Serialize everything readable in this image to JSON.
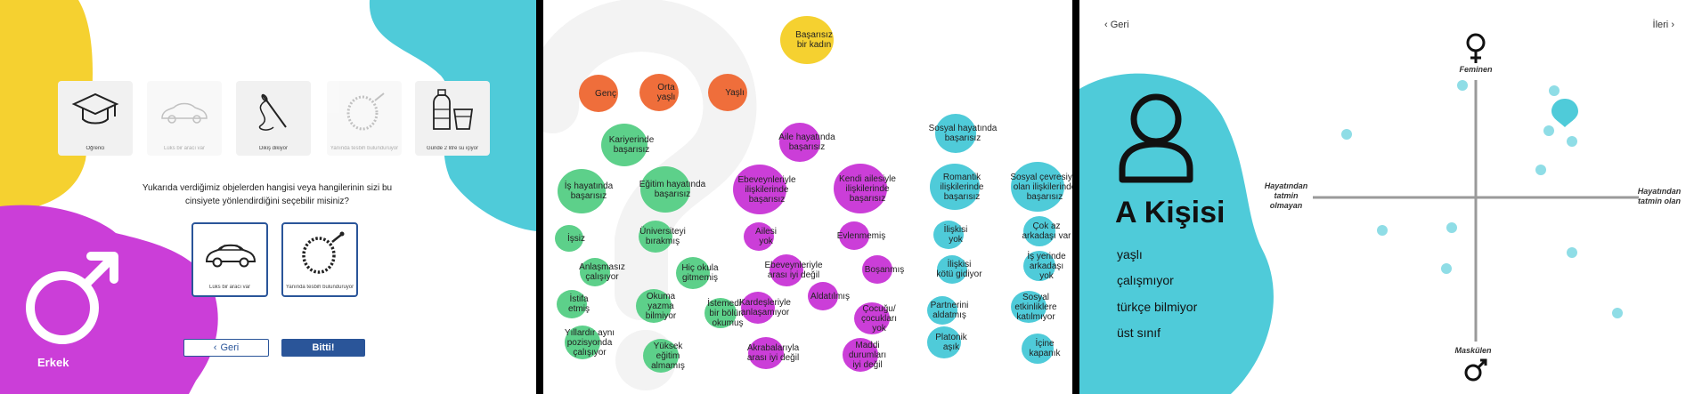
{
  "panel1": {
    "colors": {
      "yellow": "#f5d130",
      "cyan": "#4fcbd9",
      "magenta": "#cb3ed8",
      "blue": "#2a5599"
    },
    "objects": [
      {
        "icon": "graduation-cap-icon",
        "label": "Öğrenci",
        "selected": false
      },
      {
        "icon": "car-icon",
        "label": "Lüks bir aracı var",
        "selected": true
      },
      {
        "icon": "sewing-needle-icon",
        "label": "Dikiş dikiyor",
        "selected": false
      },
      {
        "icon": "rosary-icon",
        "label": "Yanında tesbih bulunduruyor",
        "selected": true
      },
      {
        "icon": "water-bottle-icon",
        "label": "Günde 2 litre su içiyor",
        "selected": false
      }
    ],
    "question": "Yukarıda verdiğimiz objelerden hangisi veya hangilerinin sizi bu cinsiyete yönlendirdiğini seçebilir misiniz?",
    "selected_cards": [
      {
        "icon": "car-icon",
        "label": "Lüks bir aracı var"
      },
      {
        "icon": "rosary-icon",
        "label": "Yanında tesbih bulunduruyor"
      }
    ],
    "back_label": "Geri",
    "done_label": "Bitti!",
    "gender_label": "Erkek",
    "gender_icon": "male-symbol-icon"
  },
  "panel2": {
    "colors": {
      "yellow": "#f5d130",
      "orange": "#ef6e3b",
      "green": "#5dd08a",
      "magenta": "#cb3ed8",
      "cyan": "#4fcbd9"
    },
    "bubbles": [
      {
        "lines": [
          "Başarısız",
          "bir kadın"
        ],
        "color": "yellow"
      },
      {
        "lines": [
          "Genç"
        ],
        "color": "orange"
      },
      {
        "lines": [
          "Orta",
          "yaşlı"
        ],
        "color": "orange"
      },
      {
        "lines": [
          "Yaşlı"
        ],
        "color": "orange"
      },
      {
        "lines": [
          "Kariyerinde",
          "başarısız"
        ],
        "color": "green"
      },
      {
        "lines": [
          "Aile hayatında",
          "başarısız"
        ],
        "color": "magenta"
      },
      {
        "lines": [
          "Sosyal hayatında",
          "başarısız"
        ],
        "color": "cyan"
      },
      {
        "lines": [
          "İş hayatında",
          "başarısız"
        ],
        "color": "green"
      },
      {
        "lines": [
          "Eğitim hayatında",
          "başarısız"
        ],
        "color": "green"
      },
      {
        "lines": [
          "Ebeveynleriyle",
          "ilişkilerinde",
          "başarısız"
        ],
        "color": "magenta"
      },
      {
        "lines": [
          "Kendi ailesiyle",
          "ilişkilerinde",
          "başarısız"
        ],
        "color": "magenta"
      },
      {
        "lines": [
          "Romantik",
          "ilişkilerinde",
          "başarısız"
        ],
        "color": "cyan"
      },
      {
        "lines": [
          "Sosyal çevresiyle",
          "olan ilişkilerinde",
          "başarısız"
        ],
        "color": "cyan"
      },
      {
        "lines": [
          "İşsiz"
        ],
        "color": "green"
      },
      {
        "lines": [
          "Üniversiteyi",
          "bırakmış"
        ],
        "color": "green"
      },
      {
        "lines": [
          "Ailesi",
          "yok"
        ],
        "color": "magenta"
      },
      {
        "lines": [
          "Evlenmemiş"
        ],
        "color": "magenta"
      },
      {
        "lines": [
          "İlişkisi",
          "yok"
        ],
        "color": "cyan"
      },
      {
        "lines": [
          "Çok az",
          "arkadaşı var"
        ],
        "color": "cyan"
      },
      {
        "lines": [
          "Anlaşmasız",
          "çalışıyor"
        ],
        "color": "green"
      },
      {
        "lines": [
          "Hiç okula",
          "gitmemiş"
        ],
        "color": "green"
      },
      {
        "lines": [
          "Ebeveynleriyle",
          "arası iyi değil"
        ],
        "color": "magenta"
      },
      {
        "lines": [
          "Boşanmış"
        ],
        "color": "magenta"
      },
      {
        "lines": [
          "İlişkisi",
          "kötü gidiyor"
        ],
        "color": "cyan"
      },
      {
        "lines": [
          "İş yerinde",
          "arkadaşı",
          "yok"
        ],
        "color": "cyan"
      },
      {
        "lines": [
          "İstifa",
          "etmiş"
        ],
        "color": "green"
      },
      {
        "lines": [
          "Okuma",
          "yazma",
          "bilmiyor"
        ],
        "color": "green"
      },
      {
        "lines": [
          "İstemediği",
          "bir bölüm",
          "okumuş"
        ],
        "color": "green"
      },
      {
        "lines": [
          "Aldatılmış"
        ],
        "color": "magenta"
      },
      {
        "lines": [
          "Kardeşleriyle",
          "anlaşamıyor"
        ],
        "color": "magenta"
      },
      {
        "lines": [
          "Çocuğu/",
          "çocukları",
          "yok"
        ],
        "color": "magenta"
      },
      {
        "lines": [
          "Partnerini",
          "aldatmış"
        ],
        "color": "cyan"
      },
      {
        "lines": [
          "Sosyal",
          "etkinliklere",
          "katılmıyor"
        ],
        "color": "cyan"
      },
      {
        "lines": [
          "Yıllardır aynı",
          "pozisyonda",
          "çalışıyor"
        ],
        "color": "green"
      },
      {
        "lines": [
          "Yüksek",
          "eğitim",
          "almamış"
        ],
        "color": "green"
      },
      {
        "lines": [
          "Akrabalarıyla",
          "arası iyi değil"
        ],
        "color": "magenta"
      },
      {
        "lines": [
          "Maddi",
          "durumları",
          "iyi değil"
        ],
        "color": "magenta"
      },
      {
        "lines": [
          "Platonik",
          "aşık"
        ],
        "color": "cyan"
      },
      {
        "lines": [
          "İçine",
          "kapanık"
        ],
        "color": "cyan"
      }
    ]
  },
  "panel3": {
    "colors": {
      "cyan": "#4fcbd9",
      "point": "#8fdde6",
      "axis": "#9a9a9a"
    },
    "back_label": "Geri",
    "next_label": "İleri",
    "axis_top": "Feminen",
    "axis_bottom": "Maskülen",
    "axis_left": [
      "Hayatından",
      "tatmin",
      "olmayan"
    ],
    "axis_right": [
      "Hayatından",
      "tatmin olan"
    ],
    "top_icon": "female-symbol-icon",
    "bottom_icon": "male-symbol-icon",
    "persona_icon": "person-icon",
    "persona_title": "A Kişisi",
    "traits": [
      "yaşlı",
      "çalışmıyor",
      "türkçe bilmiyor",
      "üst sınıf"
    ]
  }
}
